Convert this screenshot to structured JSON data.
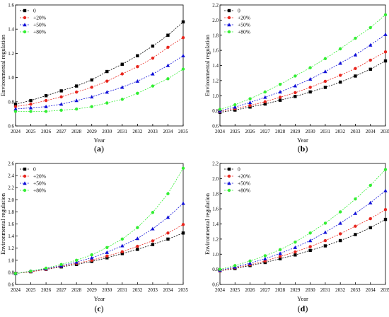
{
  "colors": {
    "series": [
      "#000000",
      "#e8261e",
      "#1010d8",
      "#33ee33"
    ],
    "axis": "#000000",
    "background": "#ffffff"
  },
  "markers": [
    "square",
    "circle",
    "triangle-up",
    "circle"
  ],
  "chart_data": [
    {
      "type": "line",
      "panel_label": "(a)",
      "xlabel": "Year",
      "ylabel": "Environmental regulation",
      "xlim": [
        2024,
        2035
      ],
      "ylim": [
        0.6,
        1.6
      ],
      "yticks": [
        "0.6",
        "0.8",
        "1.0",
        "1.2",
        "1.4",
        "1.6"
      ],
      "x": [
        2024,
        2025,
        2026,
        2027,
        2028,
        2029,
        2030,
        2031,
        2032,
        2033,
        2034,
        2035
      ],
      "legend_position": "top-left",
      "series": [
        {
          "name": "0",
          "values": [
            0.78,
            0.81,
            0.85,
            0.89,
            0.93,
            0.98,
            1.05,
            1.11,
            1.18,
            1.26,
            1.35,
            1.46
          ]
        },
        {
          "name": "+20%",
          "values": [
            0.76,
            0.78,
            0.81,
            0.84,
            0.88,
            0.92,
            0.97,
            1.03,
            1.09,
            1.16,
            1.25,
            1.33
          ]
        },
        {
          "name": "+50%",
          "values": [
            0.74,
            0.75,
            0.76,
            0.78,
            0.81,
            0.84,
            0.88,
            0.92,
            0.97,
            1.03,
            1.1,
            1.18
          ]
        },
        {
          "name": "+80%",
          "values": [
            0.72,
            0.72,
            0.72,
            0.73,
            0.74,
            0.76,
            0.79,
            0.82,
            0.87,
            0.93,
            0.99,
            1.07
          ]
        }
      ]
    },
    {
      "type": "line",
      "panel_label": "(b)",
      "xlabel": "Year",
      "ylabel": "Environmental regulation",
      "xlim": [
        2024,
        2035
      ],
      "ylim": [
        0.6,
        2.2
      ],
      "yticks": [
        "0.6",
        "0.8",
        "1.0",
        "1.2",
        "1.4",
        "1.6",
        "1.8",
        "2.0",
        "2.2"
      ],
      "x": [
        2024,
        2025,
        2026,
        2027,
        2028,
        2029,
        2030,
        2031,
        2032,
        2033,
        2034,
        2035
      ],
      "legend_position": "top-left",
      "series": [
        {
          "name": "0",
          "values": [
            0.78,
            0.81,
            0.85,
            0.89,
            0.94,
            0.99,
            1.05,
            1.11,
            1.18,
            1.26,
            1.35,
            1.46
          ]
        },
        {
          "name": "+20%",
          "values": [
            0.79,
            0.83,
            0.87,
            0.92,
            0.98,
            1.04,
            1.11,
            1.19,
            1.27,
            1.36,
            1.47,
            1.58
          ]
        },
        {
          "name": "+50%",
          "values": [
            0.8,
            0.85,
            0.91,
            0.98,
            1.05,
            1.13,
            1.22,
            1.32,
            1.43,
            1.54,
            1.67,
            1.81
          ]
        },
        {
          "name": "+80%",
          "values": [
            0.82,
            0.88,
            0.96,
            1.05,
            1.15,
            1.26,
            1.37,
            1.49,
            1.62,
            1.76,
            1.9,
            2.07
          ]
        }
      ]
    },
    {
      "type": "line",
      "panel_label": "(c)",
      "xlabel": "Year",
      "ylabel": "Environmental regulation",
      "xlim": [
        2024,
        2035
      ],
      "ylim": [
        0.6,
        2.6
      ],
      "yticks": [
        "0.6",
        "0.8",
        "1.0",
        "1.2",
        "1.4",
        "1.6",
        "1.8",
        "2.0",
        "2.2",
        "2.4",
        "2.6"
      ],
      "x": [
        2024,
        2025,
        2026,
        2027,
        2028,
        2029,
        2030,
        2031,
        2032,
        2033,
        2034,
        2035
      ],
      "legend_position": "top-left",
      "series": [
        {
          "name": "0",
          "values": [
            0.78,
            0.81,
            0.85,
            0.89,
            0.93,
            0.98,
            1.04,
            1.11,
            1.18,
            1.26,
            1.35,
            1.45
          ]
        },
        {
          "name": "+20%",
          "values": [
            0.78,
            0.81,
            0.85,
            0.9,
            0.95,
            1.0,
            1.07,
            1.14,
            1.23,
            1.32,
            1.45,
            1.59
          ]
        },
        {
          "name": "+50%",
          "values": [
            0.78,
            0.82,
            0.86,
            0.91,
            0.97,
            1.04,
            1.13,
            1.24,
            1.36,
            1.52,
            1.71,
            1.94
          ]
        },
        {
          "name": "+80%",
          "values": [
            0.78,
            0.82,
            0.87,
            0.93,
            1.0,
            1.09,
            1.21,
            1.35,
            1.54,
            1.79,
            2.1,
            2.52
          ]
        }
      ]
    },
    {
      "type": "line",
      "panel_label": "(d)",
      "xlabel": "Year",
      "ylabel": "Environmental regulation",
      "xlim": [
        2024,
        2035
      ],
      "ylim": [
        0.6,
        2.2
      ],
      "yticks": [
        "0.6",
        "0.8",
        "1.0",
        "1.2",
        "1.4",
        "1.6",
        "1.8",
        "2.0",
        "2.2"
      ],
      "x": [
        2024,
        2025,
        2026,
        2027,
        2028,
        2029,
        2030,
        2031,
        2032,
        2033,
        2034,
        2035
      ],
      "legend_position": "top-left",
      "series": [
        {
          "name": "0",
          "values": [
            0.78,
            0.81,
            0.85,
            0.89,
            0.94,
            0.99,
            1.05,
            1.11,
            1.18,
            1.26,
            1.35,
            1.46
          ]
        },
        {
          "name": "+20%",
          "values": [
            0.78,
            0.82,
            0.86,
            0.91,
            0.97,
            1.03,
            1.1,
            1.18,
            1.27,
            1.37,
            1.47,
            1.59
          ]
        },
        {
          "name": "+50%",
          "values": [
            0.79,
            0.83,
            0.88,
            0.94,
            1.01,
            1.09,
            1.18,
            1.29,
            1.41,
            1.54,
            1.68,
            1.84
          ]
        },
        {
          "name": "+80%",
          "values": [
            0.8,
            0.85,
            0.91,
            0.98,
            1.06,
            1.16,
            1.28,
            1.41,
            1.56,
            1.73,
            1.91,
            2.12
          ]
        }
      ]
    }
  ]
}
